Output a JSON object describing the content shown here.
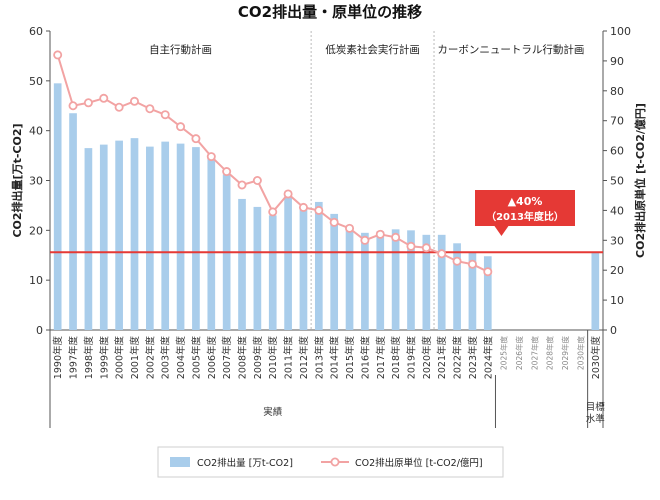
{
  "chart_data": {
    "type": "bar+line",
    "title": "CO2排出量・原単位の推移",
    "ylabel_left": "CO2排出量[万t-CO2]",
    "ylabel_right": "CO2排出原単位 [t-CO2/億円]",
    "ylim_left": [
      0,
      60
    ],
    "yticks_left": [
      "0",
      "10",
      "20",
      "30",
      "40",
      "50",
      "60"
    ],
    "ylim_right": [
      0,
      100
    ],
    "yticks_right": [
      "0",
      "10",
      "20",
      "30",
      "40",
      "50",
      "60",
      "70",
      "80",
      "90",
      "100"
    ],
    "categories": [
      "1990年度",
      "1997年度",
      "1998年度",
      "1999年度",
      "2000年度",
      "2001年度",
      "2002年度",
      "2003年度",
      "2004年度",
      "2005年度",
      "2006年度",
      "2007年度",
      "2008年度",
      "2009年度",
      "2010年度",
      "2011年度",
      "2012年度",
      "2013年度",
      "2014年度",
      "2015年度",
      "2016年度",
      "2017年度",
      "2018年度",
      "2019年度",
      "2020年度",
      "2021年度",
      "2022年度",
      "2023年度",
      "2024年度",
      "2025年度",
      "2026年度",
      "2027年度",
      "2028年度",
      "2029年度",
      "2030年度",
      "2030年度"
    ],
    "future_categories": [
      "2025年度",
      "2026年度",
      "2027年度",
      "2028年度",
      "2029年度",
      "2030年度"
    ],
    "target_category": "2030年度",
    "series": [
      {
        "name": "CO2排出量 [万t-CO2]",
        "type": "bar",
        "axis": "left",
        "color": "#a9cdeb",
        "values": [
          49.5,
          43.5,
          36.5,
          37.2,
          38,
          38.5,
          36.8,
          37.8,
          37.4,
          36.7,
          34.6,
          31.2,
          26.3,
          24.7,
          23,
          27,
          24.2,
          25.7,
          23.3,
          20.8,
          19.5,
          19.8,
          20.2,
          20,
          19.1,
          19.1,
          17.4,
          15.5,
          14.8,
          null,
          null,
          null,
          null,
          null,
          null,
          15.6
        ]
      },
      {
        "name": "CO2排出原単位 [t-CO2/億円]",
        "type": "line",
        "axis": "right",
        "color": "#f2a3a3",
        "values": [
          92,
          75,
          76,
          77.5,
          74.5,
          76.5,
          74,
          72,
          68,
          64,
          58,
          53,
          48.5,
          50,
          39.5,
          45.5,
          41,
          40,
          36,
          34,
          30,
          32,
          31,
          28,
          27.5,
          25.5,
          23,
          22,
          19.5,
          null,
          null,
          null,
          null,
          null,
          null,
          null
        ]
      }
    ],
    "target_line": {
      "value_left": 15.6,
      "color": "#e53935"
    },
    "annotation": {
      "line1": "▲40%",
      "line2": "（2013年度比）",
      "color": "#e53935"
    },
    "phases": [
      {
        "label": "自主行動計画"
      },
      {
        "label": "低炭素社会実行計画"
      },
      {
        "label": "カーボンニュートラル行動計画"
      }
    ],
    "bottom_groups": [
      {
        "label": "実績"
      },
      {
        "label": "目標水準"
      }
    ],
    "legend": [
      {
        "label": "CO2排出量 [万t-CO2]",
        "kind": "bar"
      },
      {
        "label": "CO2排出原単位 [t-CO2/億円]",
        "kind": "line"
      }
    ]
  }
}
